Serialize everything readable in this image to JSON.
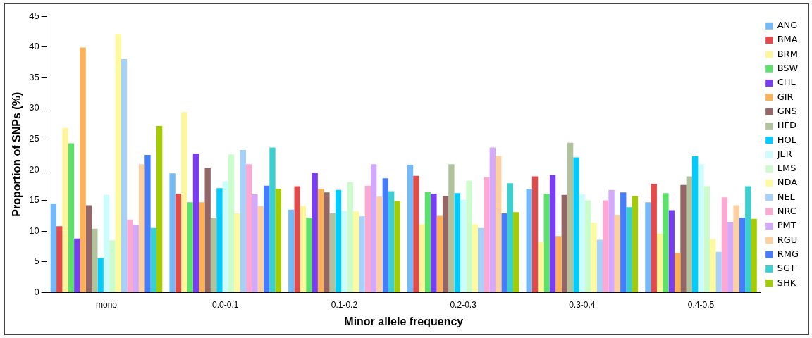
{
  "chart_data": {
    "type": "bar",
    "xlabel": "Minor allele frequency",
    "ylabel": "Proportion of SNPs (%)",
    "categories": [
      "mono",
      "0.0-0.1",
      "0.1-0.2",
      "0.2-0.3",
      "0.3-0.4",
      "0.4-0.5"
    ],
    "ylim": [
      0,
      45
    ],
    "yticks": [
      0,
      5,
      10,
      15,
      20,
      25,
      30,
      35,
      40,
      45
    ],
    "grid": false,
    "legend": "right",
    "series": [
      {
        "name": "ANG",
        "color": "#74b9f9",
        "values": [
          14.5,
          19.4,
          13.5,
          20.8,
          16.9,
          14.7
        ]
      },
      {
        "name": "BMA",
        "color": "#e34a4a",
        "values": [
          10.8,
          16.1,
          17.3,
          19.0,
          18.9,
          17.7
        ]
      },
      {
        "name": "BRM",
        "color": "#fff59a",
        "values": [
          26.8,
          29.4,
          14.1,
          11.1,
          8.2,
          9.6
        ]
      },
      {
        "name": "BSW",
        "color": "#5ae26a",
        "values": [
          24.3,
          14.7,
          12.2,
          16.4,
          16.1,
          16.2
        ]
      },
      {
        "name": "CHL",
        "color": "#7a3cf5",
        "values": [
          8.8,
          22.6,
          19.5,
          16.1,
          19.1,
          13.4
        ]
      },
      {
        "name": "GIR",
        "color": "#fdb157",
        "values": [
          39.9,
          14.7,
          16.9,
          12.5,
          9.2,
          6.4
        ]
      },
      {
        "name": "GNS",
        "color": "#956666",
        "values": [
          14.2,
          20.3,
          16.3,
          15.7,
          15.9,
          17.5
        ]
      },
      {
        "name": "HFD",
        "color": "#b1c39d",
        "values": [
          10.4,
          12.2,
          12.9,
          20.9,
          24.4,
          18.9
        ]
      },
      {
        "name": "HOL",
        "color": "#00ccff",
        "values": [
          5.6,
          17.0,
          16.7,
          16.2,
          22.0,
          22.2
        ]
      },
      {
        "name": "JER",
        "color": "#ccfcfc",
        "values": [
          15.9,
          18.1,
          13.3,
          15.1,
          16.0,
          20.9
        ]
      },
      {
        "name": "LMS",
        "color": "#ccfccc",
        "values": [
          8.5,
          22.5,
          18.0,
          18.2,
          15.0,
          17.3
        ]
      },
      {
        "name": "NDA",
        "color": "#fffa9f",
        "values": [
          42.1,
          12.9,
          13.2,
          11.1,
          11.4,
          8.7
        ]
      },
      {
        "name": "NEL",
        "color": "#a6d1fb",
        "values": [
          38.0,
          23.2,
          12.4,
          10.5,
          8.6,
          6.6
        ]
      },
      {
        "name": "NRC",
        "color": "#fca8d2",
        "values": [
          11.9,
          20.9,
          17.4,
          18.8,
          15.0,
          15.5
        ]
      },
      {
        "name": "PMT",
        "color": "#d4a8fb",
        "values": [
          11.0,
          16.0,
          20.9,
          23.6,
          16.7,
          11.5
        ]
      },
      {
        "name": "RGU",
        "color": "#fecf9f",
        "values": [
          20.9,
          14.1,
          15.6,
          22.3,
          12.6,
          14.2
        ]
      },
      {
        "name": "RMG",
        "color": "#447dff",
        "values": [
          22.4,
          17.4,
          18.6,
          12.9,
          16.3,
          12.2
        ]
      },
      {
        "name": "SGT",
        "color": "#3ad0d0",
        "values": [
          10.5,
          23.6,
          16.5,
          17.8,
          13.9,
          17.3
        ]
      },
      {
        "name": "SHK",
        "color": "#a4cc00",
        "values": [
          27.1,
          16.9,
          14.9,
          13.1,
          15.7,
          12.0
        ]
      }
    ]
  }
}
